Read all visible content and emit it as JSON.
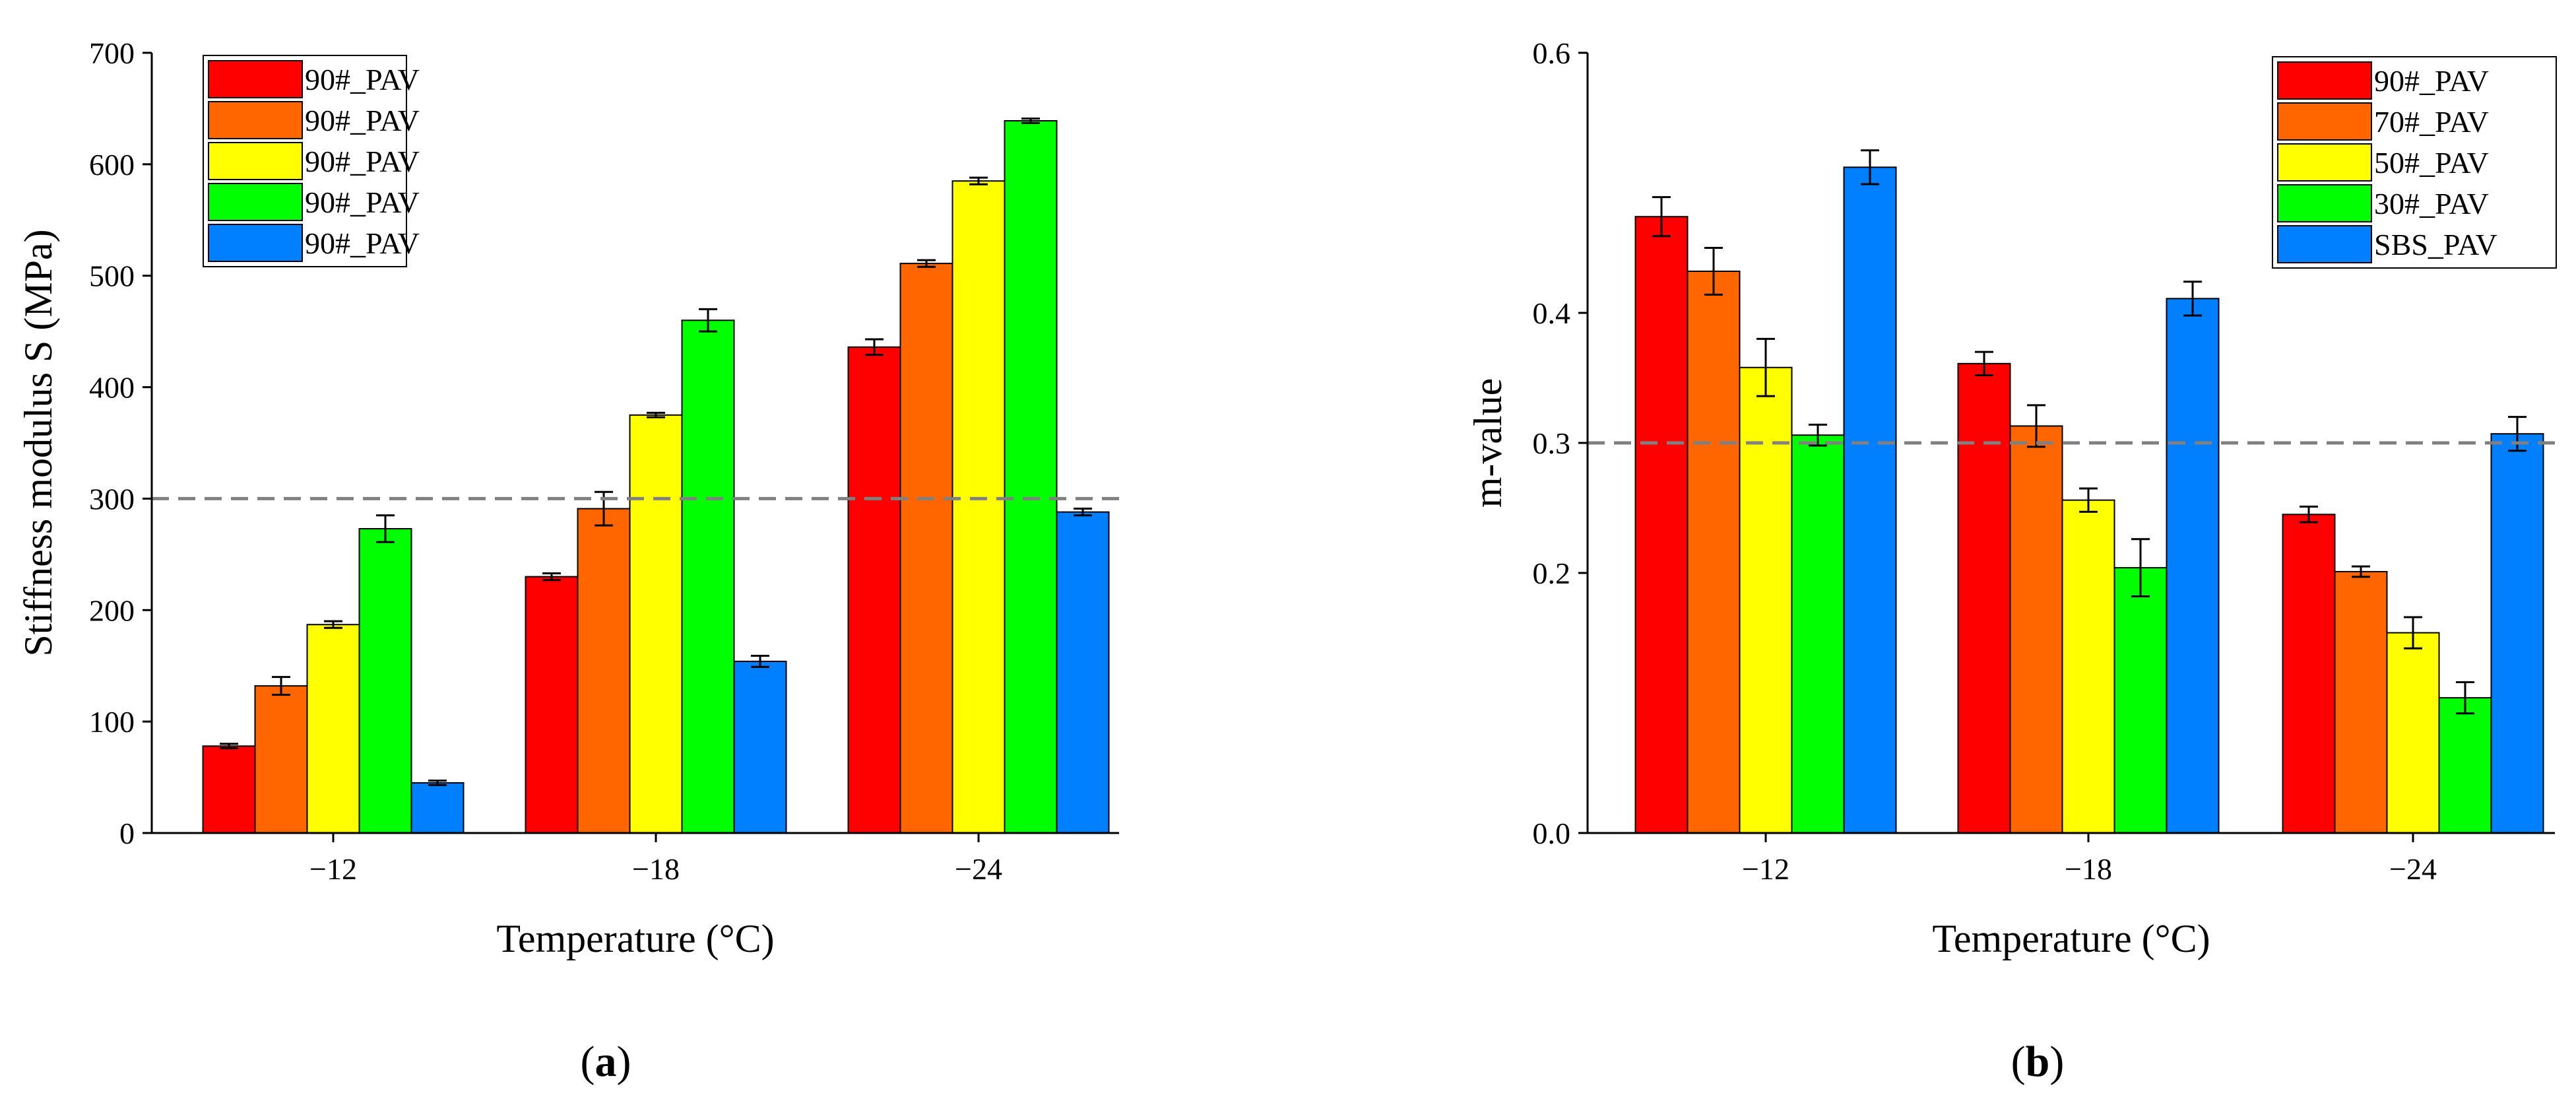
{
  "figure": {
    "caption_a": {
      "open": "(",
      "letter": "a",
      "close": ")"
    },
    "caption_b": {
      "open": "(",
      "letter": "b",
      "close": ")"
    }
  },
  "colors": {
    "red": "#ff0000",
    "orange": "#ff6600",
    "yellow": "#ffff00",
    "green": "#00ff00",
    "blue": "#0080ff",
    "threshold": "#808080"
  },
  "chart_data": [
    {
      "type": "bar",
      "panel": "a",
      "xlabel": "Temperature (°C)",
      "ylabel": "Stiffness modulus S (MPa)",
      "ylim": [
        0,
        700
      ],
      "yticks": [
        0,
        100,
        200,
        300,
        400,
        500,
        600,
        700
      ],
      "categories": [
        "−12",
        "−18",
        "−24"
      ],
      "threshold": 300,
      "legend_position": "top-left",
      "series": [
        {
          "name": "90#_PAV",
          "color": "#ff0000",
          "values": [
            78,
            230,
            436
          ],
          "errors": [
            2,
            3,
            7
          ]
        },
        {
          "name": "90#_PAV",
          "color": "#ff6600",
          "values": [
            132,
            291,
            511
          ],
          "errors": [
            8,
            15,
            3
          ]
        },
        {
          "name": "90#_PAV",
          "color": "#ffff00",
          "values": [
            187,
            375,
            585
          ],
          "errors": [
            3,
            2,
            3
          ]
        },
        {
          "name": "90#_PAV",
          "color": "#00ff00",
          "values": [
            273,
            460,
            639
          ],
          "errors": [
            12,
            10,
            2
          ]
        },
        {
          "name": "90#_PAV",
          "color": "#0080ff",
          "values": [
            45,
            154,
            288
          ],
          "errors": [
            2,
            5,
            3
          ]
        }
      ]
    },
    {
      "type": "bar",
      "panel": "b",
      "xlabel": "Temperature (°C)",
      "ylabel": "m-value",
      "ylim": [
        0,
        0.6
      ],
      "yticks": [
        0.0,
        0.2,
        0.3,
        0.4,
        0.6
      ],
      "ytick_labels": [
        "0.0",
        "0.2",
        "0.3",
        "0.4",
        "0.6"
      ],
      "categories": [
        "−12",
        "−18",
        "−24"
      ],
      "threshold": 0.3,
      "legend_position": "top-right",
      "series": [
        {
          "name": "90#_PAV",
          "color": "#ff0000",
          "values": [
            0.474,
            0.361,
            0.245
          ],
          "errors": [
            0.015,
            0.009,
            0.006
          ]
        },
        {
          "name": "70#_PAV",
          "color": "#ff6600",
          "values": [
            0.432,
            0.313,
            0.201
          ],
          "errors": [
            0.018,
            0.016,
            0.004
          ]
        },
        {
          "name": "50#_PAV",
          "color": "#ffff00",
          "values": [
            0.358,
            0.256,
            0.154
          ],
          "errors": [
            0.022,
            0.009,
            0.012
          ]
        },
        {
          "name": "30#_PAV",
          "color": "#00ff00",
          "values": [
            0.306,
            0.204,
            0.104
          ],
          "errors": [
            0.008,
            0.022,
            0.012
          ]
        },
        {
          "name": "SBS_PAV",
          "color": "#0080ff",
          "values": [
            0.512,
            0.411,
            0.307
          ],
          "errors": [
            0.013,
            0.013,
            0.013
          ]
        }
      ]
    }
  ]
}
